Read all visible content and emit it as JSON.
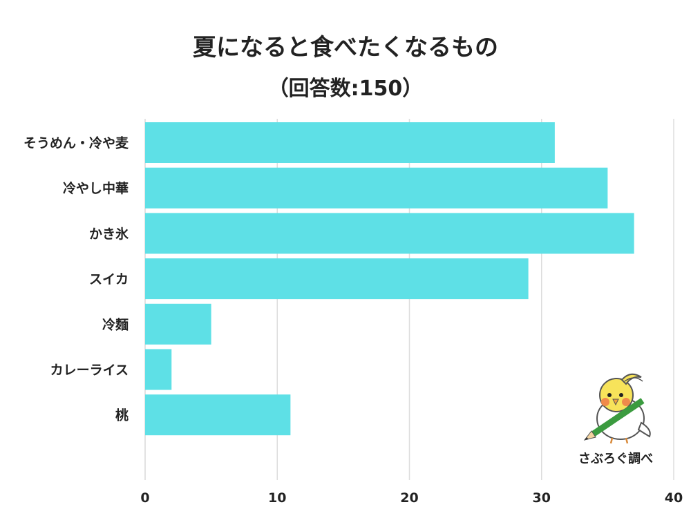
{
  "chart_data": {
    "type": "bar",
    "orientation": "horizontal",
    "title": "夏になると食べたくなるもの",
    "subtitle": "（回答数:150）",
    "categories": [
      "そうめん・冷や麦",
      "冷やし中華",
      "かき氷",
      "スイカ",
      "冷麺",
      "カレーライス",
      "桃"
    ],
    "values": [
      31,
      35,
      37,
      29,
      5,
      2,
      11
    ],
    "xlim": [
      0,
      40
    ],
    "xticks": [
      "0",
      "10",
      "20",
      "30",
      "40"
    ],
    "grid": true,
    "legend": "none",
    "bar_color": "#5ee0e6",
    "grid_color": "#dddddd"
  },
  "credit": {
    "text": "さぶろぐ調べ",
    "icon": "bird-pencil-mascot-icon"
  }
}
